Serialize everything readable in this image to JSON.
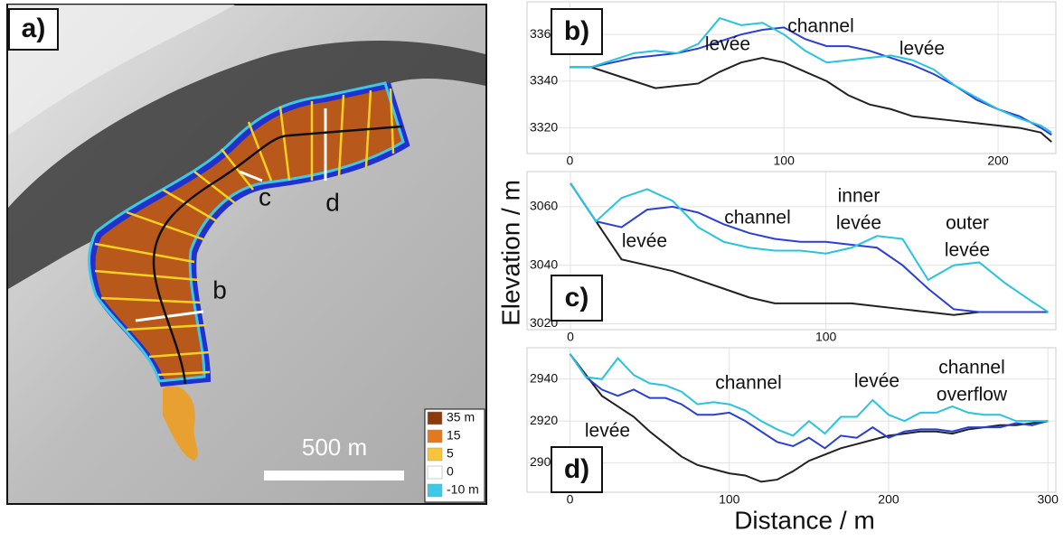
{
  "map": {
    "panel_label": "a)",
    "profile_labels": [
      "b",
      "c",
      "d"
    ],
    "scale_bar": "500 m",
    "legend": [
      {
        "label": "35 m",
        "color": "#8b3a0e"
      },
      {
        "label": "15",
        "color": "#e07a1c"
      },
      {
        "label": "5",
        "color": "#f7c43a"
      },
      {
        "label": "0",
        "color": "#ffffff"
      },
      {
        "label": "-10 m",
        "color": "#3ec8e8"
      }
    ]
  },
  "y_axis_label": "Elevation / m",
  "x_axis_label": "Distance / m",
  "chart_data": [
    {
      "type": "line",
      "panel_label": "b)",
      "annotations": [
        [
          "channel"
        ],
        [
          "levée"
        ],
        [
          "levée"
        ]
      ],
      "x": [
        0,
        10,
        20,
        30,
        40,
        50,
        60,
        70,
        80,
        90,
        100,
        110,
        120,
        130,
        140,
        150,
        160,
        170,
        180,
        190,
        200,
        210,
        220,
        225
      ],
      "xlim": [
        -20,
        227
      ],
      "xticks": [
        0,
        100,
        200
      ],
      "ylim": [
        3309,
        3374
      ],
      "yticks": [
        3320,
        3340,
        3360
      ],
      "grid": true,
      "series": [
        {
          "color": "#222222",
          "values": [
            3346,
            3346,
            3343,
            3340,
            3337,
            3338,
            3339,
            3344,
            3348,
            3350,
            3348,
            3344,
            3340,
            3334,
            3330,
            3328,
            3325,
            3324,
            3323,
            3322,
            3321,
            3320,
            3318,
            3314
          ]
        },
        {
          "color": "#2b3fd6",
          "values": [
            3346,
            3346,
            3348,
            3350,
            3351,
            3352,
            3354,
            3357,
            3360,
            3362,
            3363,
            3358,
            3355,
            3355,
            3353,
            3350,
            3347,
            3343,
            3338,
            3332,
            3328,
            3325,
            3320,
            3317
          ]
        },
        {
          "color": "#27c4e0",
          "values": [
            3346,
            3346,
            3349,
            3352,
            3353,
            3352,
            3356,
            3367,
            3364,
            3365,
            3360,
            3353,
            3348,
            3349,
            3350,
            3351,
            3349,
            3345,
            3338,
            3333,
            3328,
            3324,
            3321,
            3318
          ]
        }
      ]
    },
    {
      "type": "line",
      "panel_label": "c)",
      "annotations": [
        [
          "channel"
        ],
        [
          "levée"
        ],
        [
          "inner",
          "levée"
        ],
        [
          "outer",
          "levée"
        ]
      ],
      "x": [
        0,
        10,
        20,
        30,
        40,
        50,
        60,
        70,
        80,
        90,
        100,
        110,
        120,
        130,
        140,
        150,
        160,
        170,
        180,
        187
      ],
      "xlim": [
        -17,
        190
      ],
      "xticks": [
        0,
        100
      ],
      "ylim": [
        3018,
        3072
      ],
      "yticks": [
        3020,
        3040,
        3060
      ],
      "grid": true,
      "series": [
        {
          "color": "#222222",
          "values": [
            3068,
            3055,
            3042,
            3040,
            3038,
            3035,
            3032,
            3029,
            3027,
            3027,
            3027,
            3027,
            3026,
            3025,
            3024,
            3023,
            3024,
            3024,
            3024,
            3024
          ]
        },
        {
          "color": "#2b3fd6",
          "values": [
            3068,
            3055,
            3053,
            3059,
            3060,
            3058,
            3054,
            3051,
            3049,
            3048,
            3048,
            3047,
            3046,
            3040,
            3032,
            3025,
            3024,
            3024,
            3024,
            3024
          ]
        },
        {
          "color": "#27c4e0",
          "values": [
            3068,
            3055,
            3063,
            3066,
            3062,
            3053,
            3048,
            3046,
            3045,
            3045,
            3044,
            3046,
            3050,
            3049,
            3035,
            3040,
            3041,
            3034,
            3028,
            3024
          ]
        }
      ]
    },
    {
      "type": "line",
      "panel_label": "d)",
      "annotations": [
        [
          "channel"
        ],
        [
          "levée"
        ],
        [
          "levée"
        ],
        [
          "channel",
          "overflow"
        ]
      ],
      "x": [
        0,
        10,
        20,
        30,
        40,
        50,
        60,
        70,
        80,
        90,
        100,
        110,
        120,
        130,
        140,
        150,
        160,
        170,
        180,
        190,
        200,
        210,
        220,
        230,
        240,
        250,
        260,
        270,
        280,
        290,
        300
      ],
      "xlim": [
        -27,
        305
      ],
      "xticks": [
        0,
        100,
        200,
        300
      ],
      "ylim": [
        2886,
        2955
      ],
      "yticks": [
        2900,
        2920,
        2940
      ],
      "grid": true,
      "series": [
        {
          "color": "#222222",
          "values": [
            2952,
            2942,
            2932,
            2927,
            2922,
            2915,
            2909,
            2903,
            2899,
            2897,
            2895,
            2894,
            2891,
            2892,
            2896,
            2901,
            2904,
            2907,
            2909,
            2911,
            2913,
            2914,
            2915,
            2915,
            2914,
            2916,
            2917,
            2918,
            2918,
            2919,
            2920
          ]
        },
        {
          "color": "#2b3fd6",
          "values": [
            2952,
            2941,
            2935,
            2932,
            2935,
            2931,
            2931,
            2928,
            2923,
            2923,
            2924,
            2920,
            2915,
            2910,
            2908,
            2912,
            2907,
            2913,
            2912,
            2917,
            2912,
            2915,
            2916,
            2916,
            2915,
            2917,
            2917,
            2917,
            2919,
            2918,
            2920
          ]
        },
        {
          "color": "#27c4e0",
          "values": [
            2952,
            2941,
            2940,
            2950,
            2942,
            2938,
            2937,
            2934,
            2928,
            2929,
            2928,
            2925,
            2920,
            2916,
            2913,
            2920,
            2914,
            2922,
            2922,
            2930,
            2923,
            2920,
            2924,
            2924,
            2927,
            2924,
            2923,
            2923,
            2920,
            2920,
            2920
          ]
        }
      ]
    }
  ]
}
